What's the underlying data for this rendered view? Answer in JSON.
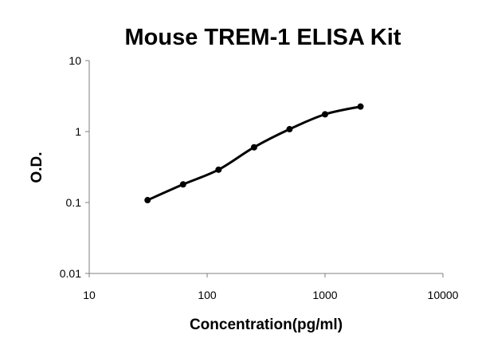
{
  "chart_data": {
    "type": "scatter",
    "title": "Mouse TREM-1 ELISA Kit",
    "xlabel": "Concentration(pg/ml)",
    "ylabel": "O.D.",
    "x_scale": "log",
    "y_scale": "log",
    "xlim": [
      10,
      10000
    ],
    "ylim": [
      0.01,
      10
    ],
    "x_ticks": [
      "10",
      "100",
      "1000",
      "10000"
    ],
    "y_ticks": [
      "0.01",
      "0.1",
      "1",
      "10"
    ],
    "grid": false,
    "legend": "none",
    "series": [
      {
        "points": [
          {
            "x": 31.25,
            "y": 0.108
          },
          {
            "x": 62.5,
            "y": 0.18
          },
          {
            "x": 125,
            "y": 0.29
          },
          {
            "x": 250,
            "y": 0.6
          },
          {
            "x": 500,
            "y": 1.08
          },
          {
            "x": 1000,
            "y": 1.75
          },
          {
            "x": 2000,
            "y": 2.25
          }
        ],
        "fit_curve": "smooth"
      }
    ],
    "colors": {
      "line": "#000000",
      "axis": "#7f7f7f"
    }
  }
}
